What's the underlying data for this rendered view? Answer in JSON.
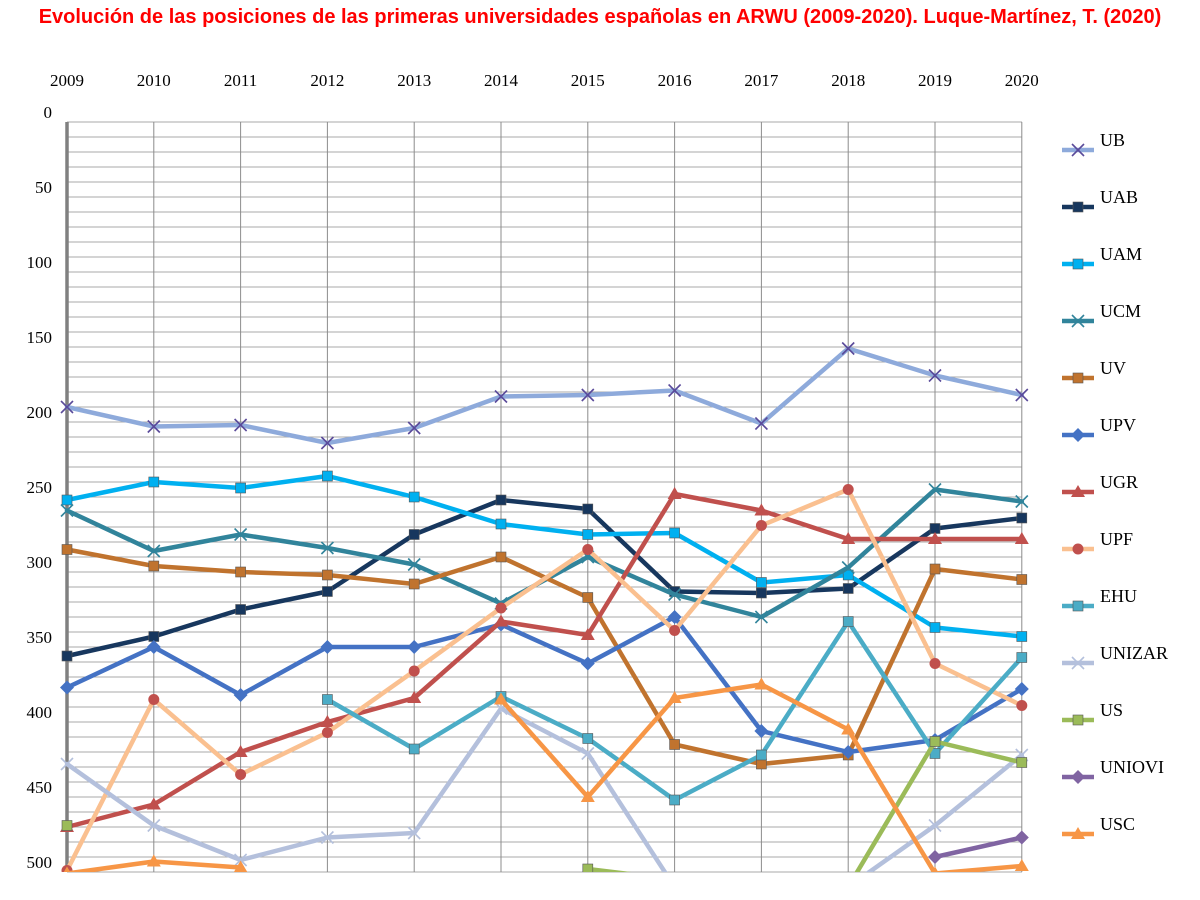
{
  "chart_data": {
    "type": "line",
    "title": "Evolución de las posiciones de las primeras universidades españolas en ARWU (2009-2020). Luque-Martínez, T. (2020)",
    "title_color": "#ff0000",
    "x": [
      "2009",
      "2010",
      "2011",
      "2012",
      "2013",
      "2014",
      "2015",
      "2016",
      "2017",
      "2018",
      "2019",
      "2020"
    ],
    "y_ticks": [
      0,
      50,
      100,
      150,
      200,
      250,
      300,
      350,
      400,
      450,
      500
    ],
    "ylim": [
      0,
      500
    ],
    "y_reversed": true,
    "grid": true,
    "legend_position": "right",
    "series": [
      {
        "name": "UB",
        "color": "#8eaadb",
        "marker": "x",
        "values": [
          190,
          203,
          202,
          214,
          204,
          183,
          182,
          179,
          201,
          151,
          169,
          182
        ]
      },
      {
        "name": "UAB",
        "color": "#17375e",
        "marker": "square",
        "values": [
          356,
          343,
          325,
          313,
          275,
          252,
          258,
          313,
          314,
          311,
          271,
          264
        ]
      },
      {
        "name": "UAM",
        "color": "#00b0f0",
        "marker": "square",
        "values": [
          252,
          240,
          244,
          236,
          250,
          268,
          275,
          274,
          307,
          302,
          337,
          343
        ]
      },
      {
        "name": "UCM",
        "color": "#31849b",
        "marker": "x",
        "values": [
          259,
          286,
          275,
          284,
          295,
          321,
          290,
          315,
          330,
          297,
          245,
          253
        ]
      },
      {
        "name": "UV",
        "color": "#c0732e",
        "marker": "square",
        "values": [
          285,
          296,
          300,
          302,
          308,
          290,
          317,
          415,
          428,
          422,
          298,
          305
        ]
      },
      {
        "name": "UPV",
        "color": "#4472c4",
        "marker": "diamond",
        "values": [
          377,
          350,
          382,
          350,
          350,
          335,
          361,
          330,
          406,
          420,
          412,
          378
        ]
      },
      {
        "name": "UGR",
        "color": "#c0504d",
        "marker": "triangle",
        "values": [
          470,
          455,
          420,
          400,
          384,
          333,
          342,
          248,
          259,
          278,
          278,
          278
        ]
      },
      {
        "name": "UPF",
        "color": "#fac090",
        "marker": "circle",
        "values": [
          499,
          385,
          435,
          407,
          366,
          324,
          285,
          339,
          269,
          245,
          361,
          389
        ]
      },
      {
        "name": "EHU",
        "color": "#4bacc6",
        "marker": "square",
        "values": [
          null,
          null,
          null,
          385,
          418,
          383,
          411,
          452,
          422,
          333,
          421,
          357
        ]
      },
      {
        "name": "UNIZAR",
        "color": "#b4c0dc",
        "marker": "x",
        "values": [
          428,
          469,
          492,
          477,
          474,
          391,
          421,
          510,
          null,
          510,
          469,
          422
        ]
      },
      {
        "name": "US",
        "color": "#9bbb59",
        "marker": "square",
        "values": [
          469,
          null,
          null,
          null,
          null,
          null,
          498,
          505,
          null,
          510,
          413,
          427
        ]
      },
      {
        "name": "UNIOVI",
        "color": "#8064a2",
        "marker": "diamond",
        "values": [
          null,
          null,
          null,
          null,
          null,
          null,
          null,
          null,
          null,
          null,
          490,
          477
        ]
      },
      {
        "name": "USC",
        "color": "#f79646",
        "marker": "triangle",
        "values": [
          501,
          493,
          497,
          null,
          null,
          385,
          450,
          384,
          375,
          405,
          501,
          496
        ]
      }
    ]
  }
}
